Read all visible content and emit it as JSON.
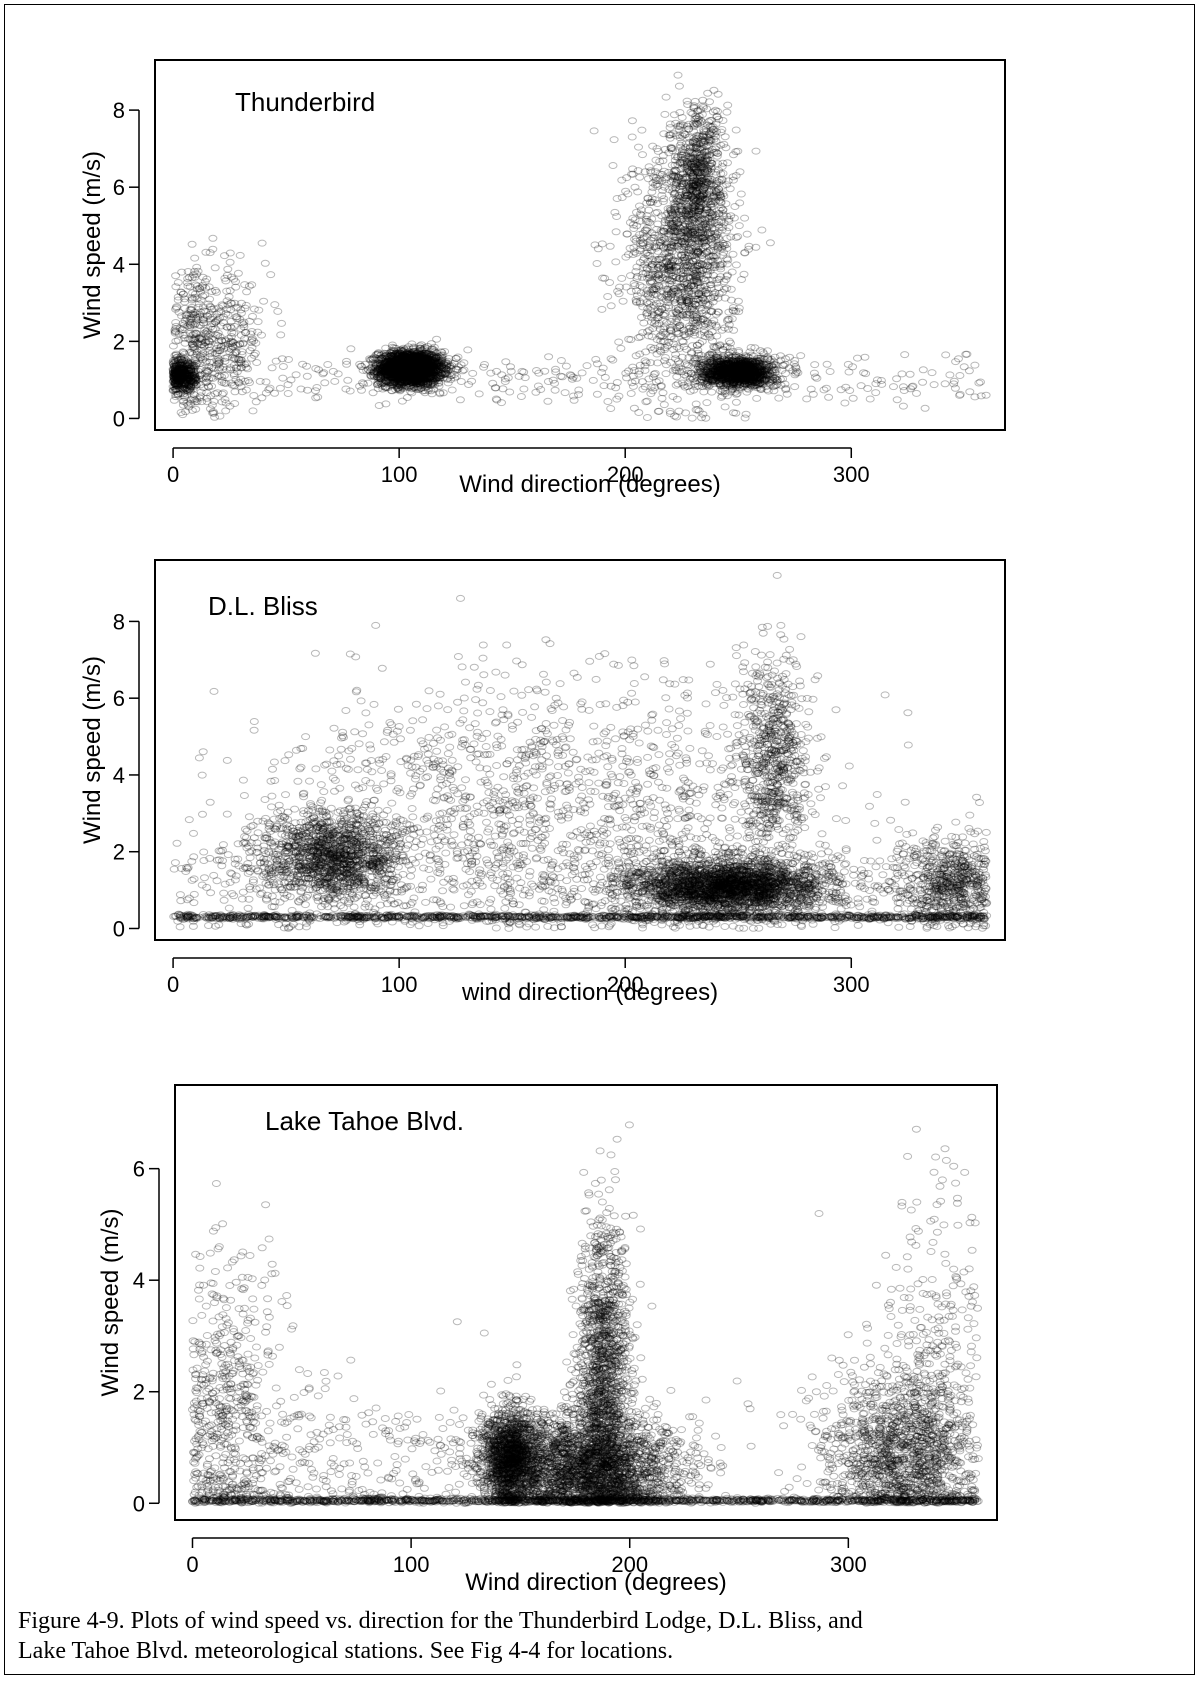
{
  "chart_data": [
    {
      "type": "scatter",
      "title": "Thunderbird",
      "xlabel": "Wind direction (degrees)",
      "ylabel": "Wind speed (m/s)",
      "xlim": [
        -8,
        368
      ],
      "ylim": [
        -0.3,
        9.3
      ],
      "xticks": [
        0,
        100,
        200,
        300
      ],
      "yticks": [
        0,
        2,
        4,
        6,
        8
      ],
      "marker": "open-circle",
      "point_color": "#000000",
      "clusters": [
        {
          "x_center": 105,
          "y_center": 1.3,
          "x_spread": 7,
          "y_spread": 0.22,
          "density": "very high"
        },
        {
          "x_center": 12,
          "y_center": 2.0,
          "x_spread": 15,
          "y_spread": 0.9,
          "density": "medium"
        },
        {
          "x_center": 2,
          "y_center": 1.1,
          "x_spread": 4,
          "y_spread": 0.2,
          "density": "medium"
        },
        {
          "x_center": 225,
          "y_center": 4.0,
          "x_spread": 12,
          "y_spread": 1.6,
          "density": "high"
        },
        {
          "x_center": 232,
          "y_center": 6.2,
          "x_spread": 6,
          "y_spread": 1.0,
          "density": "medium"
        },
        {
          "x_center": 250,
          "y_center": 1.2,
          "x_spread": 8,
          "y_spread": 0.2,
          "density": "high"
        },
        {
          "x_center": 180,
          "y_center": 1.0,
          "x_spread": 180,
          "y_spread": 0.35,
          "density": "low"
        }
      ]
    },
    {
      "type": "scatter",
      "title": "D.L. Bliss",
      "xlabel": "wind direction (degrees)",
      "ylabel": "Wind speed (m/s)",
      "xlim": [
        -8,
        368
      ],
      "ylim": [
        -0.3,
        9.6
      ],
      "xticks": [
        0,
        100,
        200,
        300
      ],
      "yticks": [
        0,
        2,
        4,
        6,
        8
      ],
      "marker": "open-circle",
      "point_color": "#000000",
      "clusters": [
        {
          "x_center": 70,
          "y_center": 1.9,
          "x_spread": 15,
          "y_spread": 0.6,
          "density": "high"
        },
        {
          "x_center": 245,
          "y_center": 1.1,
          "x_spread": 22,
          "y_spread": 0.35,
          "density": "very high"
        },
        {
          "x_center": 160,
          "y_center": 3.3,
          "x_spread": 60,
          "y_spread": 1.7,
          "density": "high"
        },
        {
          "x_center": 265,
          "y_center": 4.5,
          "x_spread": 8,
          "y_spread": 1.4,
          "density": "medium"
        },
        {
          "x_center": 345,
          "y_center": 1.2,
          "x_spread": 12,
          "y_spread": 0.6,
          "density": "medium"
        },
        {
          "x_center": 180,
          "y_center": 1.2,
          "x_spread": 180,
          "y_spread": 0.8,
          "density": "medium"
        },
        {
          "x_center": 180,
          "y_center": 0.3,
          "x_spread": 180,
          "y_spread": 0.03,
          "density": "high"
        }
      ]
    },
    {
      "type": "scatter",
      "title": "Lake Tahoe Blvd.",
      "xlabel": "Wind direction (degrees)",
      "ylabel": "Wind speed (m/s)",
      "xlim": [
        -8,
        368
      ],
      "ylim": [
        -0.3,
        7.5
      ],
      "xticks": [
        0,
        100,
        200,
        300
      ],
      "yticks": [
        0,
        2,
        4,
        6
      ],
      "marker": "open-circle",
      "point_color": "#000000",
      "clusters": [
        {
          "x_center": 180,
          "y_center": 0.6,
          "x_spread": 22,
          "y_spread": 0.5,
          "density": "very high"
        },
        {
          "x_center": 145,
          "y_center": 0.8,
          "x_spread": 6,
          "y_spread": 0.45,
          "density": "high"
        },
        {
          "x_center": 188,
          "y_center": 2.4,
          "x_spread": 6,
          "y_spread": 1.3,
          "density": "high"
        },
        {
          "x_center": 325,
          "y_center": 0.9,
          "x_spread": 18,
          "y_spread": 0.7,
          "density": "high"
        },
        {
          "x_center": 12,
          "y_center": 1.6,
          "x_spread": 14,
          "y_spread": 1.4,
          "density": "medium"
        },
        {
          "x_center": 338,
          "y_center": 2.6,
          "x_spread": 14,
          "y_spread": 1.6,
          "density": "low"
        },
        {
          "x_center": 70,
          "y_center": 0.8,
          "x_spread": 45,
          "y_spread": 0.7,
          "density": "low"
        },
        {
          "x_center": 180,
          "y_center": 0.05,
          "x_spread": 180,
          "y_spread": 0.02,
          "density": "high"
        }
      ]
    }
  ],
  "caption": {
    "line1": "Figure 4-9. Plots of wind speed vs. direction for the Thunderbird Lodge, D.L. Bliss, and",
    "line2": "Lake Tahoe Blvd. meteorological stations. See Fig 4-4 for locations."
  }
}
